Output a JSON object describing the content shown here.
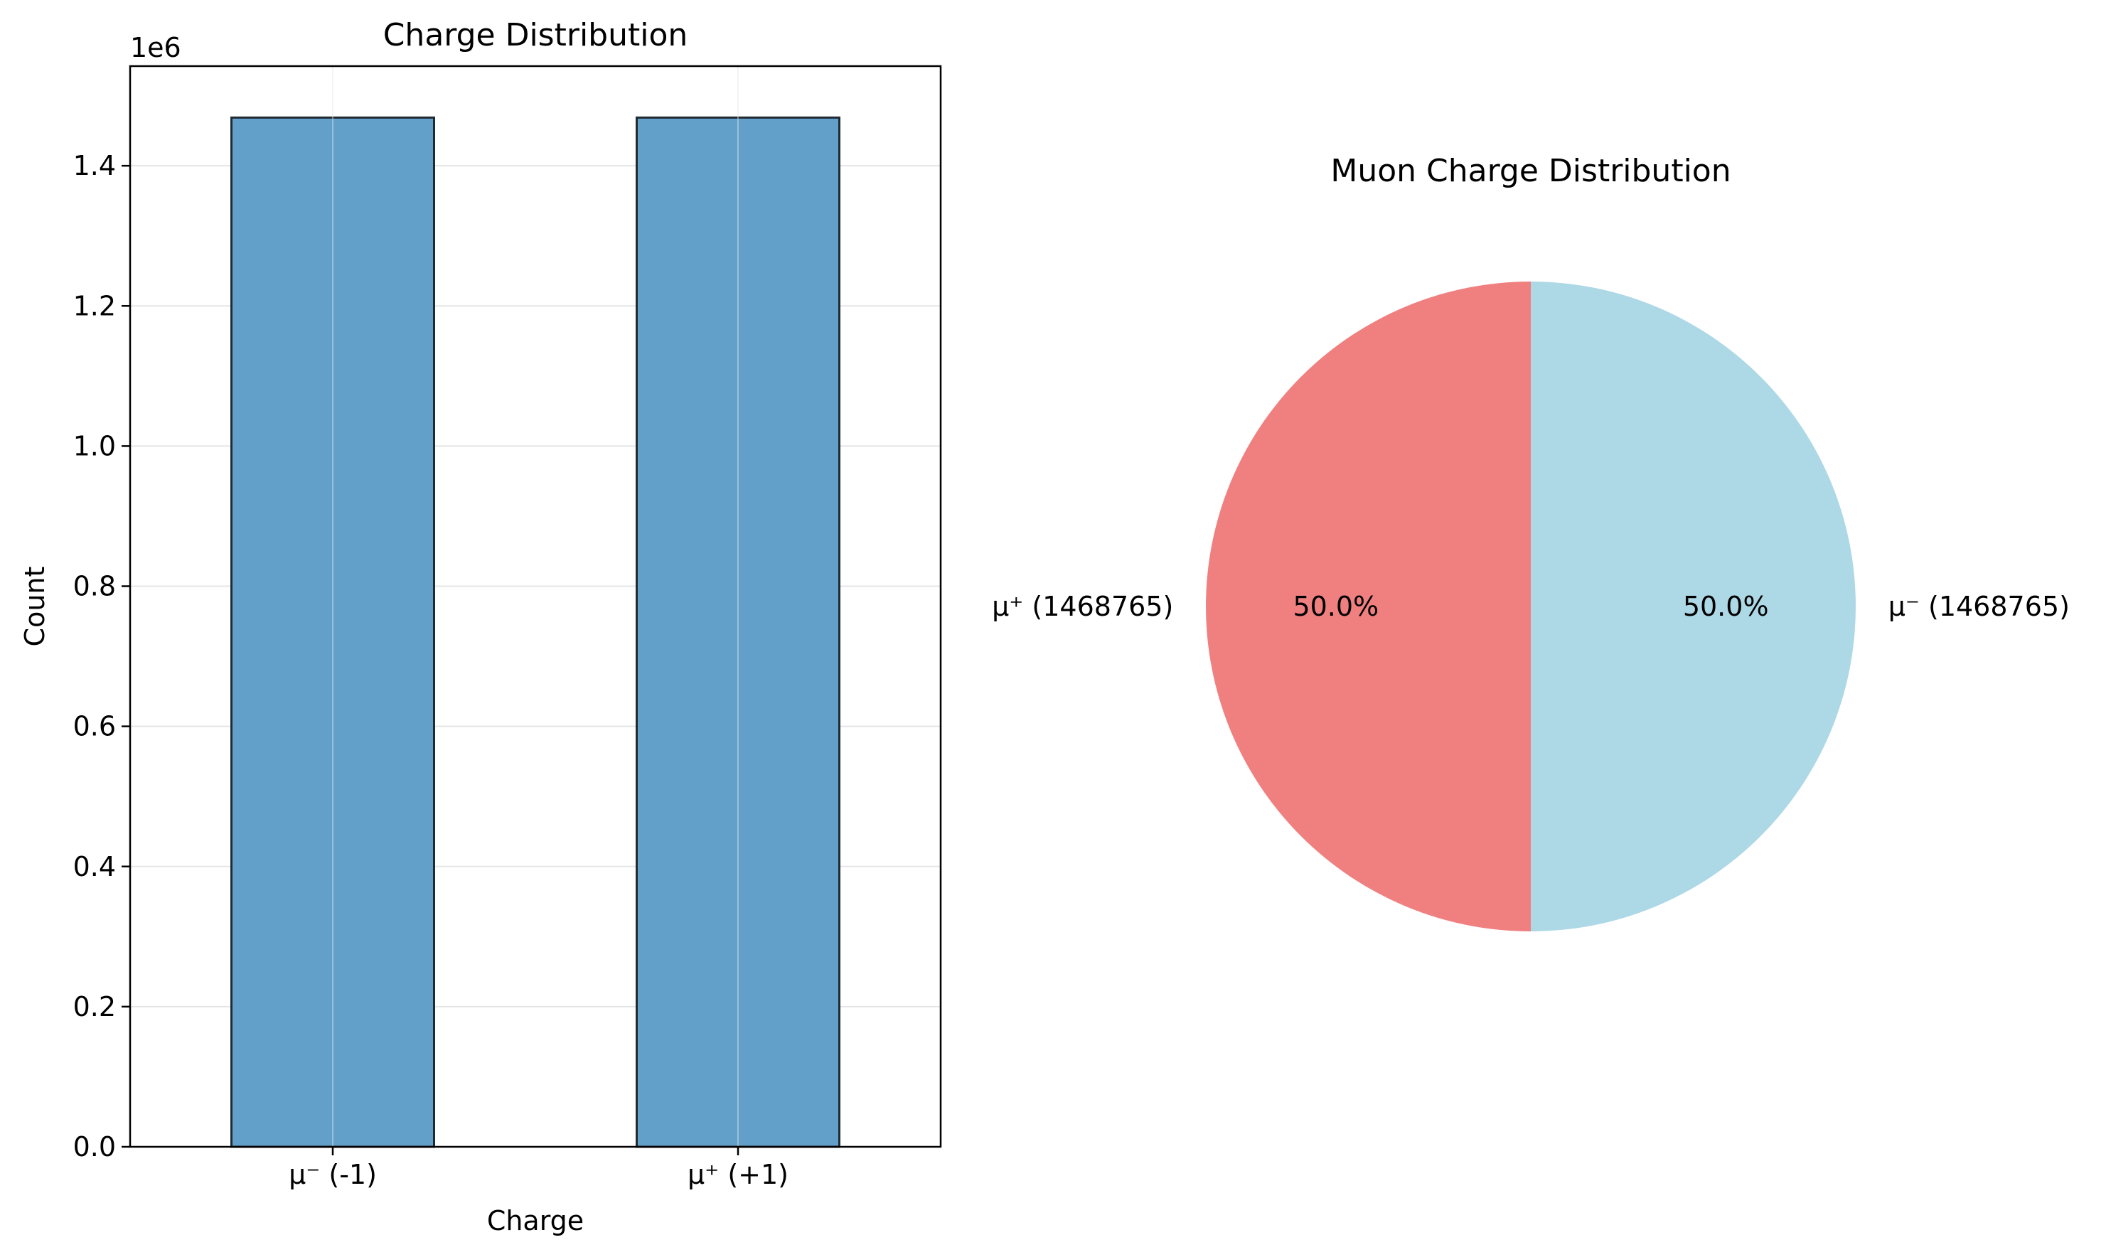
{
  "chart_data": [
    {
      "type": "bar",
      "title": "Charge Distribution",
      "xlabel": "Charge",
      "ylabel": "Count",
      "offset_text": "1e6",
      "categories": [
        "μ⁻ (-1)",
        "μ⁺ (+1)"
      ],
      "values": [
        1468765,
        1468765
      ],
      "ylim": [
        0,
        1542203
      ],
      "yticks": [
        0,
        200000,
        400000,
        600000,
        800000,
        1000000,
        1200000,
        1400000
      ],
      "ytick_labels": [
        "0.0",
        "0.2",
        "0.4",
        "0.6",
        "0.8",
        "1.0",
        "1.2",
        "1.4"
      ],
      "grid": true,
      "colors": {
        "bar": "#62a0ca",
        "edge": "#1f2a33",
        "grid": "#e5e5e5"
      }
    },
    {
      "type": "pie",
      "title": "Muon Charge Distribution",
      "slices": [
        {
          "label": "μ⁺ (1468765)",
          "value": 1468765,
          "pct": "50.0%",
          "color": "#f08080"
        },
        {
          "label": "μ⁻ (1468765)",
          "value": 1468765,
          "pct": "50.0%",
          "color": "#add8e6"
        }
      ]
    }
  ]
}
